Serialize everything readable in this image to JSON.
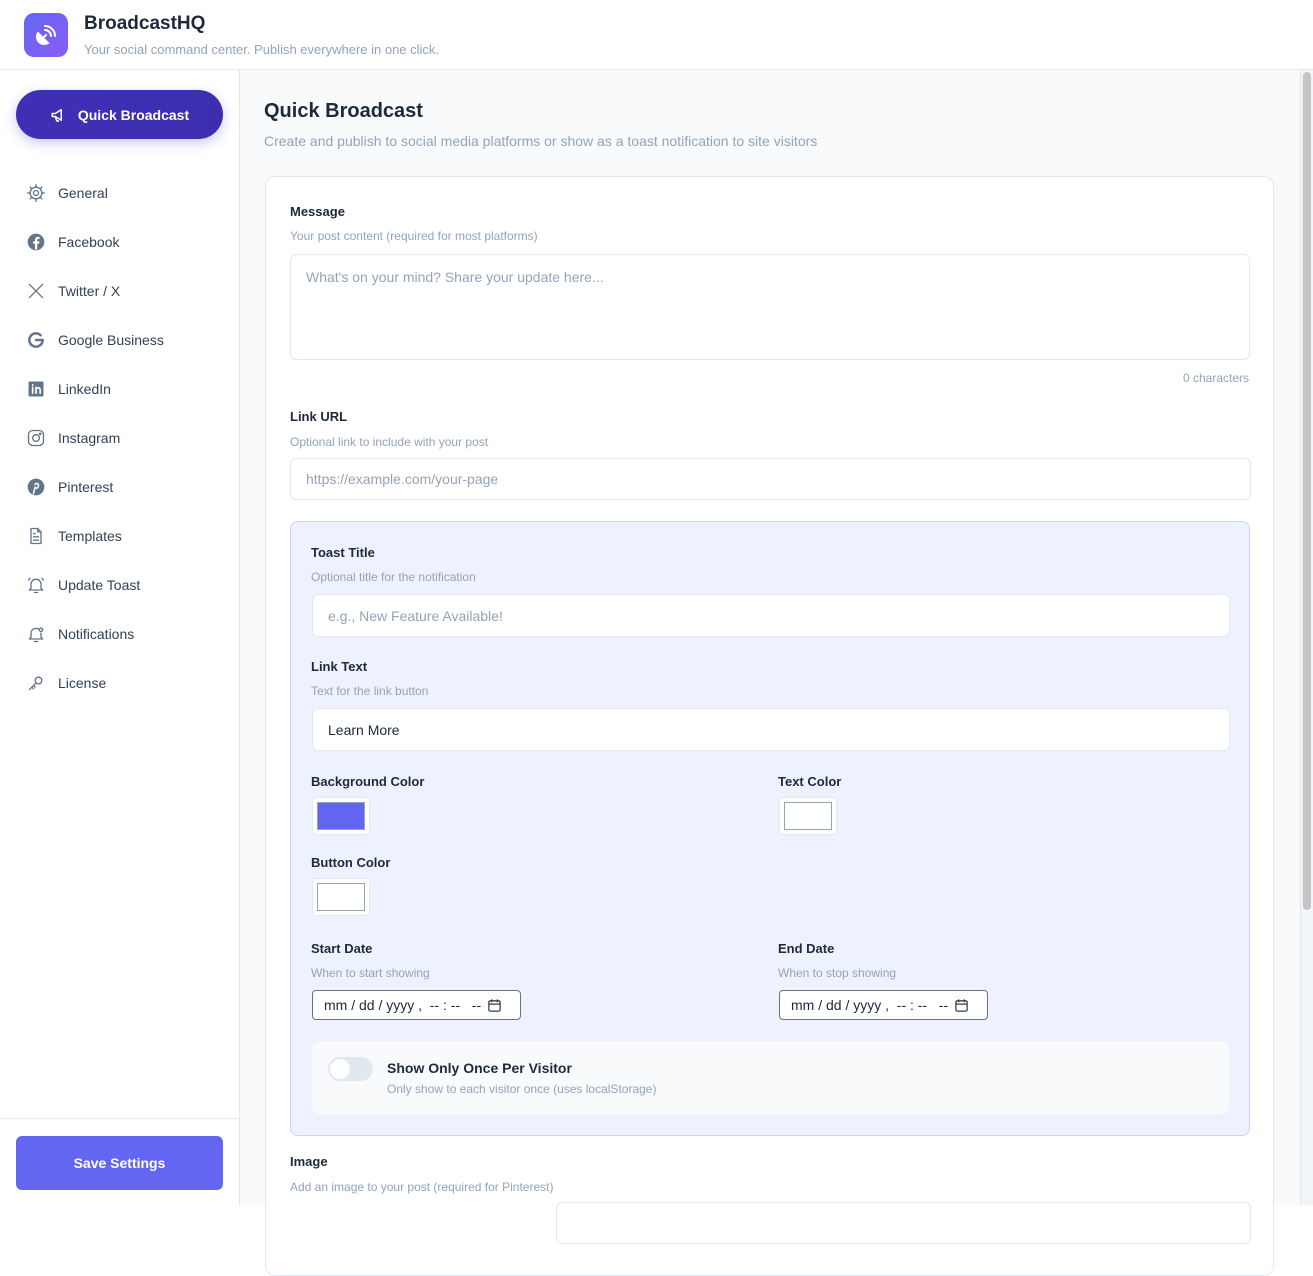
{
  "header": {
    "brand": "BroadcastHQ",
    "tagline": "Your social command center. Publish everywhere in one click."
  },
  "sidebar": {
    "quick_broadcast": "Quick Broadcast",
    "items": [
      {
        "label": "General",
        "icon": "gear-icon"
      },
      {
        "label": "Facebook",
        "icon": "facebook-icon"
      },
      {
        "label": "Twitter / X",
        "icon": "x-icon"
      },
      {
        "label": "Google Business",
        "icon": "google-icon"
      },
      {
        "label": "LinkedIn",
        "icon": "linkedin-icon"
      },
      {
        "label": "Instagram",
        "icon": "instagram-icon"
      },
      {
        "label": "Pinterest",
        "icon": "pinterest-icon"
      },
      {
        "label": "Templates",
        "icon": "document-icon"
      },
      {
        "label": "Update Toast",
        "icon": "bell-ring-icon"
      },
      {
        "label": "Notifications",
        "icon": "bell-icon"
      },
      {
        "label": "License",
        "icon": "key-icon"
      }
    ],
    "save": "Save Settings"
  },
  "main": {
    "title": "Quick Broadcast",
    "subtitle": "Create and publish to social media platforms or show as a toast notification to site visitors",
    "message": {
      "label": "Message",
      "hint": "Your post content (required for most platforms)",
      "placeholder": "What's on your mind? Share your update here...",
      "count": "0 characters"
    },
    "link": {
      "label": "Link URL",
      "hint": "Optional link to include with your post",
      "placeholder": "https://example.com/your-page"
    },
    "toast": {
      "title": {
        "label": "Toast Title",
        "hint": "Optional title for the notification",
        "placeholder": "e.g., New Feature Available!"
      },
      "link_text": {
        "label": "Link Text",
        "hint": "Text for the link button",
        "value": "Learn More"
      },
      "bg_color": {
        "label": "Background Color",
        "value": "#6366f1"
      },
      "text_color": {
        "label": "Text Color",
        "value": "#ffffff"
      },
      "button_color": {
        "label": "Button Color",
        "value": "#ffffff"
      },
      "start": {
        "label": "Start Date",
        "hint": "When to start showing",
        "placeholder": "mm / dd / yyyy ,  -- : --   --"
      },
      "end": {
        "label": "End Date",
        "hint": "When to stop showing",
        "placeholder": "mm / dd / yyyy ,  -- : --   --"
      },
      "once": {
        "label": "Show Only Once Per Visitor",
        "hint": "Only show to each visitor once (uses localStorage)",
        "enabled": false
      }
    },
    "image": {
      "label": "Image",
      "hint": "Add an image to your post (required for Pinterest)"
    }
  }
}
